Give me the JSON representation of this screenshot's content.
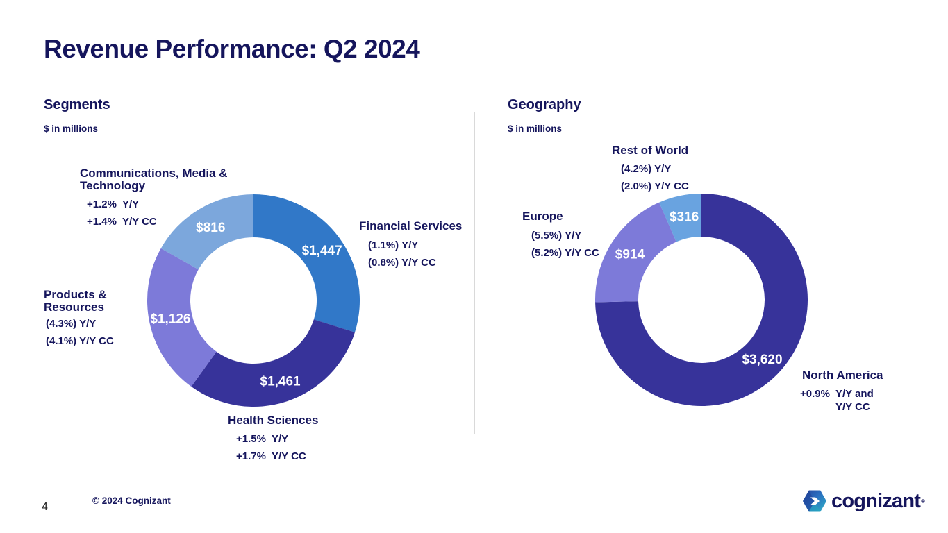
{
  "slide": {
    "title": "Revenue Performance: Q2 2024",
    "page_number": "4",
    "copyright": "© 2024 Cognizant",
    "logo_text": "cognizant",
    "logo_reg": "®"
  },
  "colors": {
    "text_navy": "#15155c",
    "donut_navy": "#37339a",
    "donut_blue": "#3178c8",
    "donut_purple": "#7d7ad9",
    "donut_light_blue": "#7ca7dc",
    "donut_sky_blue": "#69a3e0",
    "divider_gray": "#d9d9d9"
  },
  "chart_data": [
    {
      "type": "pie",
      "variant": "donut",
      "title": "Segments",
      "subtitle": "$ in millions",
      "unit": "USD millions",
      "start_angle_deg": 0,
      "direction": "clockwise",
      "total": 4850,
      "legend_position": "callouts",
      "segments": [
        {
          "label": "Financial Services",
          "value": 1447,
          "value_label": "$1,447",
          "yoy": "(1.1%) Y/Y",
          "yoy_cc": "(0.8%) Y/Y CC",
          "color": "#3178c8"
        },
        {
          "label": "Health Sciences",
          "value": 1461,
          "value_label": "$1,461",
          "yoy": "+1.5%  Y/Y",
          "yoy_cc": "+1.7%  Y/Y CC",
          "color": "#37339a"
        },
        {
          "label": "Products & Resources",
          "value": 1126,
          "value_label": "$1,126",
          "yoy": "(4.3%) Y/Y",
          "yoy_cc": "(4.1%) Y/Y CC",
          "color": "#7d7ad9"
        },
        {
          "label": "Communications, Media & Technology",
          "value": 816,
          "value_label": "$816",
          "yoy": "+1.2%  Y/Y",
          "yoy_cc": "+1.4%  Y/Y CC",
          "color": "#7ca7dc"
        }
      ]
    },
    {
      "type": "pie",
      "variant": "donut",
      "title": "Geography",
      "subtitle": "$ in millions",
      "unit": "USD millions",
      "start_angle_deg": 0,
      "direction": "clockwise",
      "total": 4850,
      "legend_position": "callouts",
      "segments": [
        {
          "label": "North America",
          "value": 3620,
          "value_label": "$3,620",
          "yoy": "+0.9%  Y/Y and",
          "yoy_cc": "Y/Y CC",
          "color": "#37339a"
        },
        {
          "label": "Europe",
          "value": 914,
          "value_label": "$914",
          "yoy": "(5.5%) Y/Y",
          "yoy_cc": "(5.2%) Y/Y CC",
          "color": "#7d7ad9"
        },
        {
          "label": "Rest of World",
          "value": 316,
          "value_label": "$316",
          "yoy": "(4.2%) Y/Y",
          "yoy_cc": "(2.0%) Y/Y CC",
          "color": "#69a3e0"
        }
      ]
    }
  ]
}
